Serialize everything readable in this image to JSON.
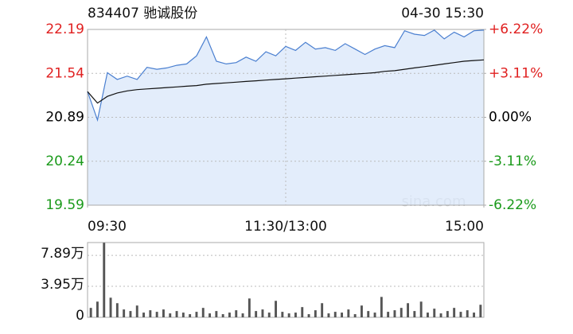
{
  "chart_data": [
    {
      "type": "line",
      "title": "834407 驰诚股份",
      "subtitle": "04-30 15:30",
      "watermark": "sina.com",
      "x": [
        0,
        6,
        12,
        18,
        24,
        30,
        36,
        42,
        48,
        54,
        60,
        66,
        72,
        78,
        84,
        90,
        96,
        102,
        108,
        114,
        120,
        126,
        132,
        138,
        144,
        150,
        156,
        162,
        168,
        174,
        180,
        186,
        192,
        198,
        204,
        210,
        216,
        222,
        228,
        234,
        240
      ],
      "xlim": [
        0,
        240
      ],
      "xticks": [
        {
          "value": 0,
          "label": "09:30"
        },
        {
          "value": 120,
          "label": "11:30/13:00"
        },
        {
          "value": 240,
          "label": "15:00"
        }
      ],
      "ylim": [
        19.59,
        22.19
      ],
      "yticks": [
        19.59,
        20.24,
        20.89,
        21.54,
        22.19
      ],
      "y2lim": [
        -6.22,
        6.22
      ],
      "y2ticks": [
        {
          "value": -6.22,
          "label": "-6.22%"
        },
        {
          "value": -3.11,
          "label": "-3.11%"
        },
        {
          "value": 0,
          "label": "0.00%"
        },
        {
          "value": 3.11,
          "label": "+3.11%"
        },
        {
          "value": 6.22,
          "label": "+6.22%"
        }
      ],
      "grid": true,
      "up_color": "#e02020",
      "down_color": "#1a9a1a",
      "flat_color": "#000000",
      "reference": 20.89,
      "series": [
        {
          "color": "#4a7fd0",
          "fill": "#dce8fa",
          "values": [
            21.27,
            20.85,
            21.55,
            21.45,
            21.5,
            21.45,
            21.63,
            21.6,
            21.62,
            21.66,
            21.68,
            21.8,
            22.08,
            21.72,
            21.68,
            21.7,
            21.78,
            21.72,
            21.86,
            21.8,
            21.94,
            21.88,
            22.0,
            21.9,
            21.92,
            21.88,
            21.98,
            21.9,
            21.82,
            21.9,
            21.95,
            21.92,
            22.17,
            22.12,
            22.1,
            22.18,
            22.05,
            22.15,
            22.08,
            22.17,
            22.18
          ]
        },
        {
          "color": "#111111",
          "values": [
            21.27,
            21.1,
            21.2,
            21.25,
            21.28,
            21.3,
            21.31,
            21.32,
            21.33,
            21.34,
            21.35,
            21.36,
            21.38,
            21.39,
            21.4,
            21.41,
            21.42,
            21.43,
            21.44,
            21.45,
            21.46,
            21.47,
            21.48,
            21.49,
            21.5,
            21.51,
            21.52,
            21.53,
            21.54,
            21.55,
            21.57,
            21.58,
            21.6,
            21.62,
            21.64,
            21.66,
            21.68,
            21.7,
            21.72,
            21.73,
            21.74
          ]
        }
      ]
    },
    {
      "type": "bar",
      "x": [
        2,
        6,
        10,
        14,
        18,
        22,
        26,
        30,
        34,
        38,
        42,
        46,
        50,
        54,
        58,
        62,
        66,
        70,
        74,
        78,
        82,
        86,
        90,
        94,
        98,
        102,
        106,
        110,
        114,
        118,
        122,
        126,
        130,
        134,
        138,
        142,
        146,
        150,
        154,
        158,
        162,
        166,
        170,
        174,
        178,
        182,
        186,
        190,
        194,
        198,
        202,
        206,
        210,
        214,
        218,
        222,
        226,
        230,
        234,
        238
      ],
      "xlim": [
        0,
        240
      ],
      "values": [
        1.2,
        2.0,
        9.5,
        2.5,
        1.8,
        1.0,
        0.8,
        1.5,
        0.6,
        0.9,
        0.7,
        1.0,
        0.5,
        0.8,
        0.6,
        0.4,
        0.7,
        1.2,
        0.5,
        0.8,
        0.4,
        0.6,
        0.9,
        0.5,
        2.4,
        0.8,
        1.0,
        0.6,
        2.1,
        0.7,
        0.5,
        0.6,
        1.3,
        0.4,
        0.9,
        1.8,
        0.5,
        0.7,
        0.6,
        1.0,
        0.4,
        1.5,
        0.8,
        0.6,
        2.6,
        0.7,
        0.9,
        1.2,
        1.8,
        0.8,
        2.0,
        0.6,
        1.1,
        0.5,
        0.8,
        1.2,
        0.7,
        0.9,
        0.6,
        1.6
      ],
      "color": "#555555",
      "ylim": [
        0,
        9.53
      ],
      "yticks": [
        0,
        {
          "value": 3.95,
          "label": "3.95万"
        },
        {
          "value": 7.89,
          "label": "7.89万"
        }
      ],
      "grid": true
    }
  ]
}
